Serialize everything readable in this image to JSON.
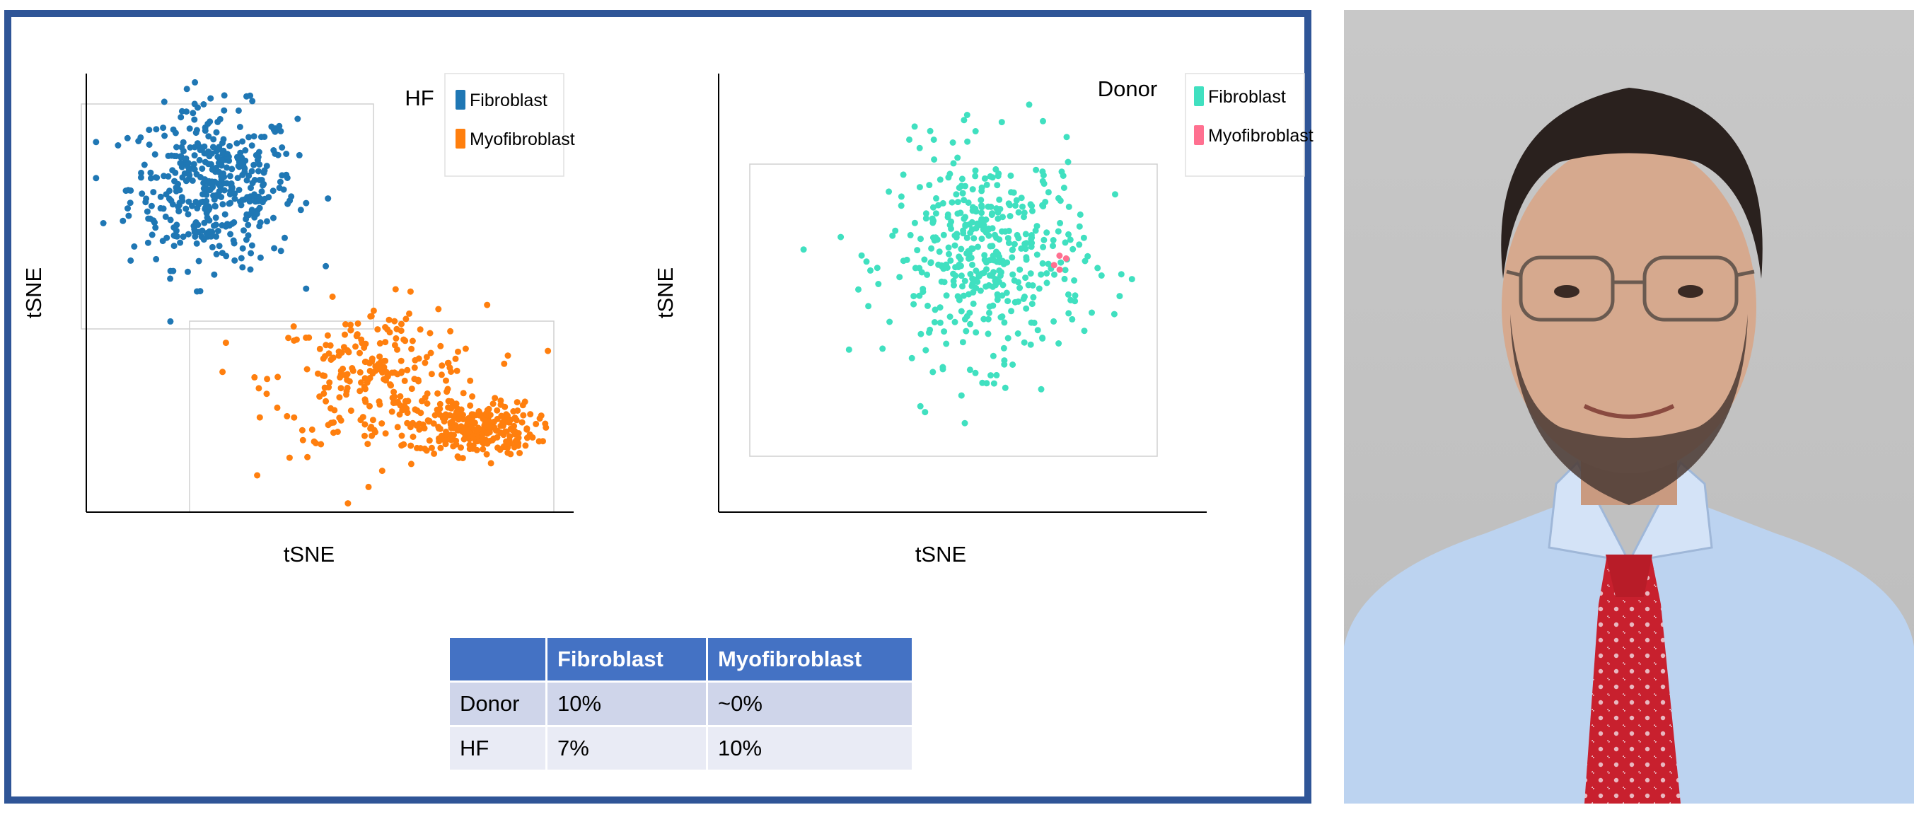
{
  "colors": {
    "frame": "#2f5597",
    "hf_fibroblast": "#1f77b4",
    "hf_myofibroblast": "#ff7f0e",
    "donor_fibroblast": "#40e0c0",
    "donor_myofibroblast": "#ff7090",
    "table_header": "#4472c4"
  },
  "chart_data": [
    {
      "type": "scatter",
      "condition_label": "HF",
      "xlabel": "tSNE",
      "ylabel": "tSNE",
      "legend": {
        "position": "top-right",
        "entries": [
          "Fibroblast",
          "Myofibroblast"
        ]
      },
      "series": [
        {
          "name": "Fibroblast",
          "n_points": 430,
          "clusters": [
            {
              "cx": 0.26,
              "cy": 0.74,
              "sx": 0.085,
              "sy": 0.09
            }
          ]
        },
        {
          "name": "Myofibroblast",
          "n_points": 520,
          "clusters": [
            {
              "cx": 0.6,
              "cy": 0.3,
              "sx": 0.11,
              "sy": 0.085
            },
            {
              "cx": 0.8,
              "cy": 0.19,
              "sx": 0.06,
              "sy": 0.03
            }
          ]
        }
      ]
    },
    {
      "type": "scatter",
      "condition_label": "Donor",
      "xlabel": "tSNE",
      "ylabel": "tSNE",
      "legend": {
        "position": "top-right",
        "entries": [
          "Fibroblast",
          "Myofibroblast"
        ]
      },
      "series": [
        {
          "name": "Fibroblast",
          "n_points": 440,
          "clusters": [
            {
              "cx": 0.55,
              "cy": 0.58,
              "sx": 0.1,
              "sy": 0.12
            }
          ]
        },
        {
          "name": "Myofibroblast",
          "n_points": 4,
          "clusters": [
            {
              "cx": 0.69,
              "cy": 0.57,
              "sx": 0.01,
              "sy": 0.01
            }
          ]
        }
      ]
    }
  ],
  "table": {
    "headers": [
      "",
      "Fibroblast",
      "Myofibroblast"
    ],
    "rows": [
      [
        "Donor",
        "10%",
        "~0%"
      ],
      [
        "HF",
        "7%",
        "10%"
      ]
    ]
  },
  "photo": {
    "subject": "portrait-photo"
  }
}
